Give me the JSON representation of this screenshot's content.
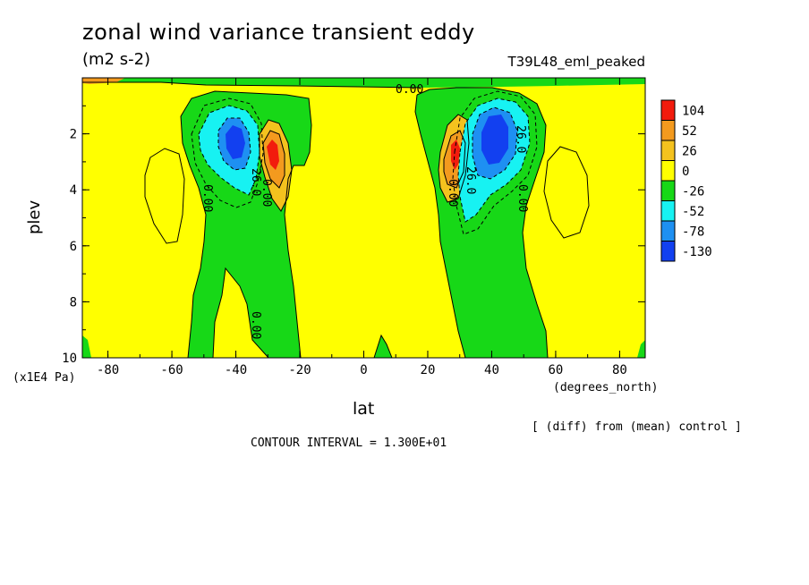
{
  "chart_data": {
    "type": "contour",
    "title": "zonal wind variance transient eddy",
    "units": "(m2 s-2)",
    "experiment": "T39L48_eml_peaked",
    "xlabel": "lat",
    "x_units": "(degrees_north)",
    "ylabel": "plev",
    "y_units": "(x1E4 Pa)",
    "xlim": [
      -88,
      88
    ],
    "ylim": [
      10,
      0
    ],
    "x_ticks": [
      -80,
      -60,
      -40,
      -20,
      0,
      20,
      40,
      60,
      80
    ],
    "x_tick_labels": [
      "-80",
      "-60",
      "-40",
      "-20",
      "0",
      "20",
      "40",
      "60",
      "80"
    ],
    "y_ticks": [
      2,
      4,
      6,
      8,
      10
    ],
    "y_tick_labels": [
      "2",
      "4",
      "6",
      "8",
      "10"
    ],
    "contour_labels": [
      "0.00",
      "26.0",
      "0.00",
      "0.00",
      "0.00",
      "0.00",
      "26.0",
      "0.00",
      "26.0"
    ],
    "colorbar": {
      "levels": [
        "104",
        "52",
        "26",
        "0",
        "-26",
        "-52",
        "-78",
        "-130"
      ],
      "colors": [
        "#f21b0d",
        "#f39a1e",
        "#f4c21e",
        "#ffff00",
        "#17d817",
        "#17f2f2",
        "#1e90f2",
        "#1240f0"
      ]
    },
    "features": [
      {
        "name": "southern negative minimum",
        "lat": -40,
        "plev": 2.4,
        "value": -78
      },
      {
        "name": "southern positive maximum",
        "lat": -30,
        "plev": 2.8,
        "value": 104
      },
      {
        "name": "northern positive maximum",
        "lat": 28,
        "plev": 2.8,
        "value": 104
      },
      {
        "name": "northern negative minimum",
        "lat": 40,
        "plev": 2.4,
        "value": -78
      }
    ],
    "footer_diff": "[ (diff) from (mean) control ]",
    "contour_interval": "CONTOUR INTERVAL = 1.300E+01"
  }
}
